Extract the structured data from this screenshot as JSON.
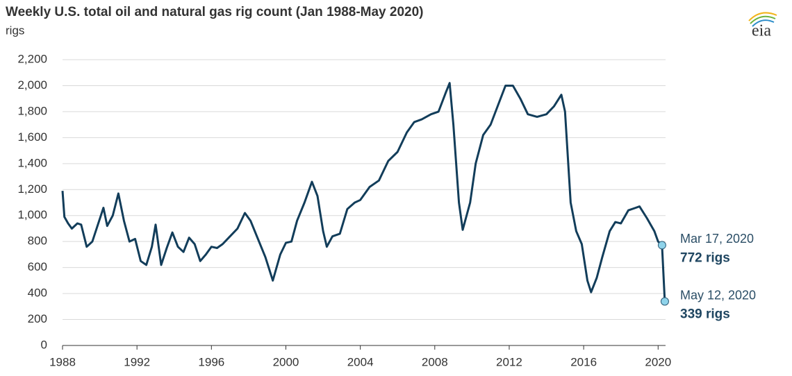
{
  "chart_data": {
    "type": "line",
    "title": "Weekly U.S. total oil and natural gas rig count (Jan 1988-May 2020)",
    "y_label": "rigs",
    "logo": "eia",
    "color": "#123d5a",
    "grid": true,
    "xlim": [
      1988,
      2020.4
    ],
    "xticks": [
      1988,
      1992,
      1996,
      2000,
      2004,
      2008,
      2012,
      2016,
      2020
    ],
    "ylim": [
      0,
      2200
    ],
    "yticks": [
      0,
      200,
      400,
      600,
      800,
      {
        "value": 1000,
        "label": "1,000"
      },
      {
        "value": 1200,
        "label": "1,200"
      },
      {
        "value": 1400,
        "label": "1,400"
      },
      {
        "value": 1600,
        "label": "1,600"
      },
      {
        "value": 1800,
        "label": "1,800"
      },
      {
        "value": 2000,
        "label": "2,000"
      },
      {
        "value": 2200,
        "label": "2,200"
      }
    ],
    "x": [
      1988.0,
      1988.1,
      1988.3,
      1988.5,
      1988.8,
      1989.0,
      1989.3,
      1989.6,
      1989.9,
      1990.2,
      1990.4,
      1990.7,
      1991.0,
      1991.3,
      1991.6,
      1991.9,
      1992.2,
      1992.5,
      1992.8,
      1993.0,
      1993.3,
      1993.6,
      1993.9,
      1994.2,
      1994.5,
      1994.8,
      1995.1,
      1995.4,
      1995.7,
      1996.0,
      1996.3,
      1996.6,
      1997.0,
      1997.4,
      1997.8,
      1998.1,
      1998.5,
      1998.9,
      1999.3,
      1999.7,
      2000.0,
      2000.3,
      2000.6,
      2001.0,
      2001.4,
      2001.7,
      2002.0,
      2002.2,
      2002.5,
      2002.9,
      2003.3,
      2003.7,
      2004.0,
      2004.5,
      2005.0,
      2005.5,
      2006.0,
      2006.5,
      2006.9,
      2007.3,
      2007.8,
      2008.2,
      2008.6,
      2008.8,
      2009.0,
      2009.3,
      2009.5,
      2009.9,
      2010.2,
      2010.6,
      2011.0,
      2011.4,
      2011.8,
      2012.2,
      2012.6,
      2013.0,
      2013.5,
      2014.0,
      2014.4,
      2014.8,
      2015.0,
      2015.3,
      2015.6,
      2015.9,
      2016.2,
      2016.4,
      2016.7,
      2017.0,
      2017.4,
      2017.7,
      2018.0,
      2018.4,
      2018.8,
      2019.0,
      2019.4,
      2019.8,
      2020.0,
      2020.21,
      2020.36
    ],
    "values": [
      1190,
      990,
      940,
      900,
      940,
      930,
      760,
      800,
      930,
      1060,
      920,
      1000,
      1170,
      960,
      800,
      820,
      650,
      620,
      760,
      930,
      620,
      750,
      870,
      760,
      720,
      830,
      780,
      650,
      700,
      760,
      750,
      780,
      840,
      900,
      1020,
      960,
      820,
      680,
      500,
      700,
      790,
      800,
      960,
      1100,
      1260,
      1150,
      880,
      760,
      840,
      860,
      1050,
      1100,
      1120,
      1220,
      1270,
      1420,
      1490,
      1640,
      1720,
      1740,
      1780,
      1800,
      1950,
      2020,
      1700,
      1100,
      890,
      1100,
      1400,
      1620,
      1700,
      1850,
      2000,
      2000,
      1900,
      1780,
      1760,
      1780,
      1840,
      1930,
      1800,
      1100,
      880,
      780,
      500,
      410,
      520,
      680,
      880,
      950,
      940,
      1040,
      1060,
      1070,
      980,
      880,
      800,
      772,
      339
    ],
    "annotations": [
      {
        "x": 2020.21,
        "value": 772,
        "date": "Mar 17, 2020",
        "label": "772 rigs"
      },
      {
        "x": 2020.36,
        "value": 339,
        "date": "May 12, 2020",
        "label": "339 rigs"
      }
    ]
  }
}
